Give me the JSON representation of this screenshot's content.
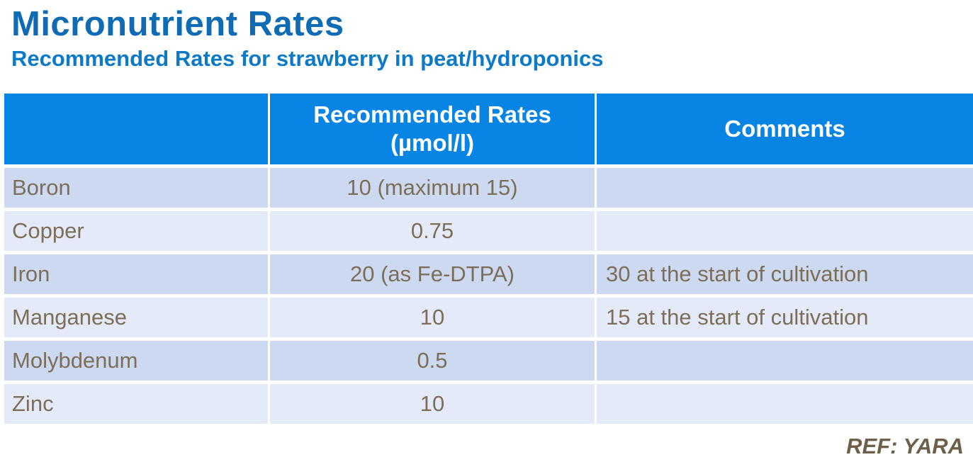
{
  "slide": {
    "title": "Micronutrient Rates",
    "subtitle": "Recommended Rates for strawberry in peat/hydroponics",
    "reference": "REF: YARA"
  },
  "colors": {
    "title_text": "#0f6cb4",
    "subtitle_text": "#0c7ac6",
    "table_header_bg": "#0784e4",
    "table_header_text": "#ffffff",
    "row_dark_bg": "#ccd9f1",
    "row_light_bg": "#e4eaf8",
    "body_text": "#7d6e58",
    "reference_text": "#6e5f4b"
  },
  "table": {
    "header": {
      "element_label": "",
      "rates_line1": "Recommended Rates",
      "rates_line2": "(µmol/l)",
      "comments_label": "Comments"
    },
    "rows": [
      {
        "element": "Boron",
        "rate": "10 (maximum 15)",
        "comment": ""
      },
      {
        "element": "Copper",
        "rate": "0.75",
        "comment": ""
      },
      {
        "element": "Iron",
        "rate": "20 (as Fe-DTPA)",
        "comment": "30 at the start of cultivation"
      },
      {
        "element": "Manganese",
        "rate": "10",
        "comment": "15 at the start of cultivation"
      },
      {
        "element": "Molybdenum",
        "rate": "0.5",
        "comment": ""
      },
      {
        "element": "Zinc",
        "rate": "10",
        "comment": ""
      }
    ]
  }
}
